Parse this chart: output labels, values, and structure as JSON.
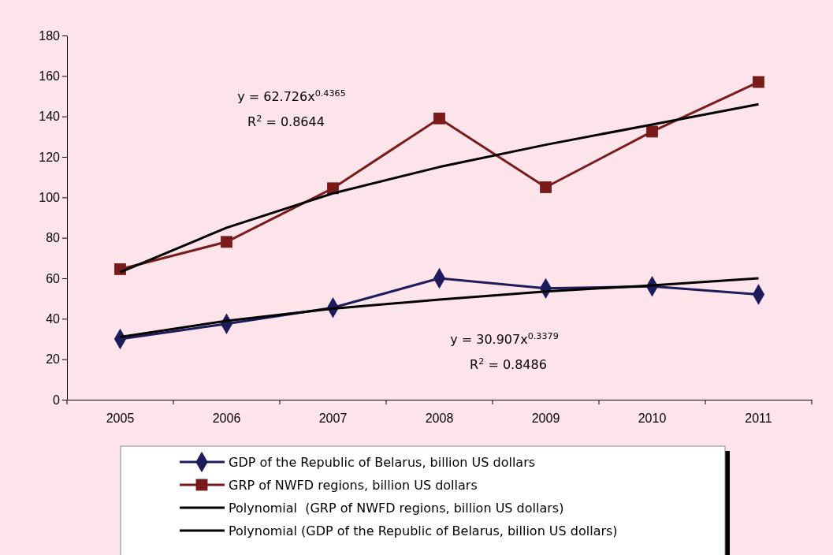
{
  "chart_data": {
    "type": "line",
    "categories": [
      "2005",
      "2006",
      "2007",
      "2008",
      "2009",
      "2010",
      "2011"
    ],
    "ylim": [
      0,
      180
    ],
    "yticks": [
      0,
      20,
      40,
      60,
      80,
      100,
      120,
      140,
      160,
      180
    ],
    "grid": false,
    "legend": "bottom",
    "series": [
      {
        "name": "GDP of the Republic of Belarus, billion US dollars",
        "color": "#1c1c5c",
        "marker": "diamond",
        "values": [
          30,
          37.5,
          45.5,
          60,
          55,
          56,
          52
        ]
      },
      {
        "name": "GRP of NWFD regions, billion US dollars",
        "color": "#7a1a1a",
        "marker": "square",
        "values": [
          64.5,
          78,
          104.5,
          139,
          105,
          132.5,
          157
        ]
      },
      {
        "name": "Polynomial  (GRP of NWFD regions, billion US dollars)",
        "color": "#000000",
        "marker": "none",
        "values": [
          63,
          85,
          102,
          115,
          126,
          136,
          146
        ]
      },
      {
        "name": "Polynomial (GDP of the Republic of Belarus, billion US dollars)",
        "color": "#000000",
        "marker": "none",
        "values": [
          31,
          39,
          45,
          49.5,
          53.5,
          56.5,
          60
        ]
      }
    ],
    "annotations": [
      "y = 62.726x$^{0.4365}$",
      "R$^{2}$ = 0.8644",
      "y = 30.907x$^{0.3379}$",
      "R$^{2}$ = 0.8486"
    ]
  }
}
